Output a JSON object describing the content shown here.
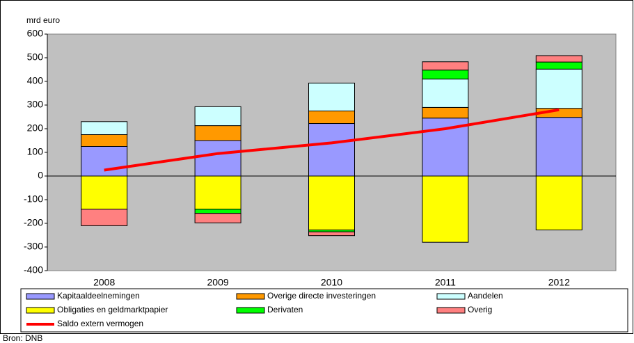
{
  "chart_data": {
    "type": "bar",
    "stacked": true,
    "y_label": "mrd euro",
    "source": "Bron: DNB",
    "categories": [
      "2008",
      "2009",
      "2010",
      "2011",
      "2012"
    ],
    "ylim": [
      -400,
      600
    ],
    "yticks": [
      -400,
      -300,
      -200,
      -100,
      0,
      100,
      200,
      300,
      400,
      500,
      600
    ],
    "background": "#c0c0c0",
    "legend": "bottom",
    "series": [
      {
        "name": "Kapitaaldeelnemingen",
        "color": "#9999ff",
        "values": [
          125,
          150,
          222,
          245,
          248
        ]
      },
      {
        "name": "Overige directe investeringen",
        "color": "#ff9900",
        "values": [
          50,
          63,
          53,
          45,
          38
        ]
      },
      {
        "name": "Aandelen",
        "color": "#ccffff",
        "values": [
          55,
          80,
          118,
          120,
          166
        ]
      },
      {
        "name": "Obligaties en geldmarktpapier",
        "color": "#ffff00",
        "values": [
          -140,
          -140,
          -228,
          -280,
          -228
        ]
      },
      {
        "name": "Derivaten",
        "color": "#00ff00",
        "values": [
          0,
          -18,
          -8,
          38,
          30
        ]
      },
      {
        "name": "Overig",
        "color": "#ff8080",
        "values": [
          -70,
          -40,
          -16,
          35,
          27
        ]
      },
      {
        "name": "Saldo extern vermogen",
        "color": "#ff0000",
        "type": "line",
        "values": [
          25,
          95,
          140,
          200,
          280
        ]
      }
    ]
  }
}
